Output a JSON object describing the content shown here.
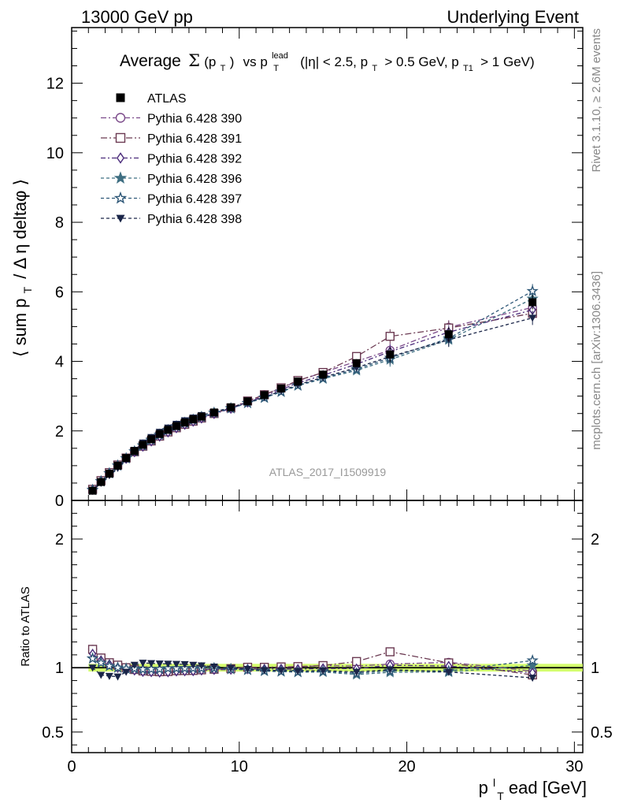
{
  "header": {
    "left": "13000 GeV pp",
    "right": "Underlying Event"
  },
  "side_labels": {
    "rivet": "Rivet 3.1.10, ≥ 2.6M events",
    "mcplots": "mcplots.cern.ch [arXiv:1306.3436]"
  },
  "watermark": "ATLAS_2017_I1509919",
  "plot_title": {
    "average": "Average",
    "sigma": "Σ",
    "pt_open": "(p",
    "pt_sub": "T",
    "pt_close": ")",
    "vs": "vs p",
    "lead_sup": "lead",
    "lead_sub": "T",
    "cuts_a": "(|η| < 2.5, p",
    "cuts_a_sub": "T",
    "cuts_b": "> 0.5 GeV, p",
    "cuts_b_sub": "T1",
    "cuts_c": "> 1 GeV)"
  },
  "ylabel_main": {
    "a": "⟨ sum p",
    "sub": "T",
    "b": "/ Δ η deltaφ ⟩"
  },
  "ylabel_ratio": "Ratio to ATLAS",
  "xlabel": {
    "p": "p",
    "sup": "l",
    "sub": "T",
    "rest": "ead [GeV]"
  },
  "chart_data": {
    "type": "line",
    "x": [
      1.25,
      1.75,
      2.25,
      2.75,
      3.25,
      3.75,
      4.25,
      4.75,
      5.25,
      5.75,
      6.25,
      6.75,
      7.25,
      7.75,
      8.5,
      9.5,
      10.5,
      11.5,
      12.5,
      13.5,
      15.0,
      17.0,
      19.0,
      22.5,
      27.5
    ],
    "xlim": [
      0,
      30.5
    ],
    "x_ticks": [
      "0",
      "10",
      "20",
      "30"
    ],
    "main": {
      "ylim": [
        0,
        13.6
      ],
      "y_ticks": [
        "0",
        "2",
        "4",
        "6",
        "8",
        "10",
        "12"
      ]
    },
    "ratio": {
      "ylim": [
        0.34,
        2.3
      ],
      "y_ticks": [
        "0.5",
        "1",
        "2"
      ],
      "band_color": "#ccff55"
    },
    "legend_position": "top-left",
    "series": [
      {
        "name": "ATLAS",
        "color": "#000000",
        "marker": "square-filled",
        "values": [
          0.28,
          0.53,
          0.77,
          1.0,
          1.22,
          1.42,
          1.6,
          1.76,
          1.91,
          2.03,
          2.14,
          2.24,
          2.33,
          2.41,
          2.53,
          2.68,
          2.85,
          3.03,
          3.22,
          3.42,
          3.62,
          3.95,
          4.2,
          4.78,
          5.7
        ]
      },
      {
        "name": "Pythia 6.428 390",
        "color": "#7b4a8a",
        "marker": "circle-open",
        "values": [
          0.32,
          0.57,
          0.79,
          1.01,
          1.21,
          1.4,
          1.56,
          1.71,
          1.85,
          1.97,
          2.09,
          2.19,
          2.28,
          2.37,
          2.5,
          2.66,
          2.85,
          3.04,
          3.23,
          3.44,
          3.68,
          4.0,
          4.32,
          4.98,
          5.55
        ]
      },
      {
        "name": "Pythia 6.428 391",
        "color": "#6b3a52",
        "marker": "square-open",
        "values": [
          0.32,
          0.57,
          0.8,
          1.02,
          1.22,
          1.4,
          1.56,
          1.71,
          1.85,
          1.97,
          2.09,
          2.19,
          2.28,
          2.37,
          2.5,
          2.66,
          2.86,
          3.04,
          3.24,
          3.45,
          3.68,
          4.14,
          4.72,
          4.96,
          5.38
        ]
      },
      {
        "name": "Pythia 6.428 392",
        "color": "#4a2a7a",
        "marker": "diamond-open",
        "values": [
          0.31,
          0.56,
          0.79,
          1.0,
          1.2,
          1.39,
          1.55,
          1.7,
          1.84,
          1.96,
          2.08,
          2.18,
          2.27,
          2.36,
          2.49,
          2.64,
          2.82,
          3.0,
          3.19,
          3.38,
          3.6,
          3.92,
          4.28,
          4.84,
          5.48
        ]
      },
      {
        "name": "Pythia 6.428 396",
        "color": "#3f6f82",
        "marker": "star-filled",
        "values": [
          0.3,
          0.55,
          0.78,
          1.0,
          1.21,
          1.41,
          1.58,
          1.74,
          1.89,
          2.02,
          2.13,
          2.23,
          2.32,
          2.4,
          2.52,
          2.65,
          2.8,
          2.95,
          3.12,
          3.3,
          3.5,
          3.74,
          4.05,
          4.62,
          5.8
        ]
      },
      {
        "name": "Pythia 6.428 397",
        "color": "#2f5878",
        "marker": "star-open",
        "values": [
          0.3,
          0.55,
          0.78,
          1.0,
          1.21,
          1.41,
          1.58,
          1.74,
          1.89,
          2.02,
          2.13,
          2.23,
          2.32,
          2.4,
          2.52,
          2.65,
          2.8,
          2.96,
          3.13,
          3.31,
          3.52,
          3.78,
          4.1,
          4.66,
          6.02
        ]
      },
      {
        "name": "Pythia 6.428 398",
        "color": "#1a2548",
        "marker": "triangle-down-filled",
        "values": [
          0.28,
          0.5,
          0.72,
          0.93,
          1.18,
          1.45,
          1.66,
          1.82,
          1.97,
          2.09,
          2.2,
          2.3,
          2.38,
          2.45,
          2.55,
          2.67,
          2.82,
          2.97,
          3.15,
          3.33,
          3.54,
          3.82,
          4.14,
          4.62,
          5.25
        ]
      }
    ]
  }
}
